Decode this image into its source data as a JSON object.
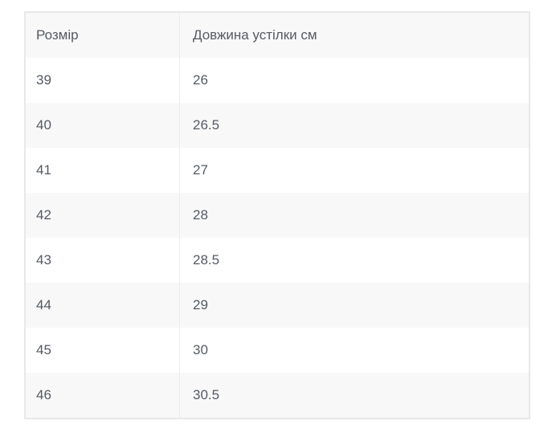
{
  "table": {
    "title": "size-chart",
    "headers": {
      "size": "Розмір",
      "length": "Довжина устілки см"
    },
    "rows": [
      {
        "size": "39",
        "length": "26"
      },
      {
        "size": "40",
        "length": "26.5"
      },
      {
        "size": "41",
        "length": "27"
      },
      {
        "size": "42",
        "length": "28"
      },
      {
        "size": "43",
        "length": "28.5"
      },
      {
        "size": "44",
        "length": "29"
      },
      {
        "size": "45",
        "length": "30"
      },
      {
        "size": "46",
        "length": "30.5"
      }
    ],
    "colors": {
      "header_bg": "#f8f8f8",
      "stripe_bg": "#f8f8f8",
      "row_bg": "#ffffff",
      "border": "#e8e8e8",
      "divider": "#ececec",
      "text": "#555a62"
    }
  }
}
